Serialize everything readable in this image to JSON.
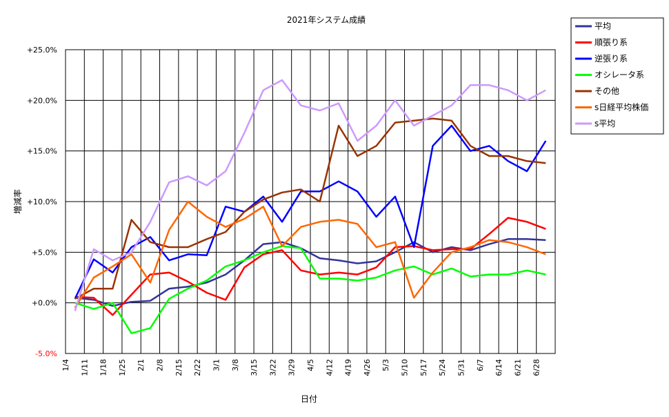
{
  "chart_data": {
    "type": "line",
    "title": "2021年システム成績",
    "xlabel": "日付",
    "ylabel": "増減率",
    "ylim": [
      -5,
      25
    ],
    "y_ticks": [
      "-5.0%",
      "+0.0%",
      "+5.0%",
      "+10.0%",
      "+15.0%",
      "+20.0%",
      "+25.0%"
    ],
    "categories": [
      "1/4",
      "1/11",
      "1/18",
      "1/25",
      "2/1",
      "2/8",
      "2/15",
      "2/22",
      "3/1",
      "3/8",
      "3/15",
      "3/22",
      "3/29",
      "4/5",
      "4/12",
      "4/19",
      "4/26",
      "5/3",
      "5/10",
      "5/17",
      "5/24",
      "5/31",
      "6/7",
      "6/14",
      "6/21",
      "6/28"
    ],
    "grid": true,
    "legend_position": "right",
    "series": [
      {
        "name": "平均",
        "color": "#333399",
        "values": [
          0.5,
          0.3,
          -0.3,
          0.1,
          0.2,
          1.4,
          1.6,
          2.0,
          2.8,
          4.2,
          5.8,
          6.0,
          5.4,
          4.4,
          4.2,
          3.9,
          4.1,
          5.0,
          6.0,
          5.0,
          5.5,
          5.2,
          5.8,
          6.3,
          6.3,
          6.2
        ]
      },
      {
        "name": "順張り系",
        "color": "#ff0000",
        "values": [
          0.6,
          0.5,
          -1.2,
          0.8,
          2.8,
          3.0,
          2.1,
          1.0,
          0.3,
          3.5,
          4.8,
          5.2,
          3.2,
          2.8,
          3.0,
          2.8,
          3.5,
          5.5,
          5.6,
          5.2,
          5.3,
          5.3,
          6.8,
          8.4,
          8.0,
          7.3
        ]
      },
      {
        "name": "逆張り系",
        "color": "#0000ff",
        "values": [
          0.4,
          4.3,
          3.0,
          5.5,
          6.5,
          4.2,
          4.8,
          4.7,
          9.5,
          9.0,
          10.5,
          8.0,
          11.0,
          11.0,
          12.0,
          11.0,
          8.5,
          10.5,
          5.5,
          15.5,
          17.5,
          15.0,
          15.5,
          14.0,
          13.0,
          16.0
        ]
      },
      {
        "name": "オシレータ系",
        "color": "#00ff00",
        "values": [
          0.0,
          -0.6,
          0.0,
          -3.0,
          -2.5,
          0.4,
          1.4,
          2.2,
          3.6,
          4.2,
          5.0,
          5.6,
          5.4,
          2.4,
          2.4,
          2.2,
          2.5,
          3.2,
          3.6,
          2.8,
          3.4,
          2.6,
          2.8,
          2.8,
          3.2,
          2.8
        ]
      },
      {
        "name": "その他",
        "color": "#993300",
        "values": [
          0.4,
          1.4,
          1.4,
          8.2,
          6.0,
          5.5,
          5.5,
          6.3,
          7.0,
          9.0,
          10.2,
          10.9,
          11.2,
          10.0,
          17.5,
          14.5,
          15.5,
          17.8,
          18.0,
          18.2,
          18.0,
          15.5,
          14.5,
          14.5,
          14.0,
          13.8
        ]
      },
      {
        "name": "s日経平均株価",
        "color": "#ff6600",
        "values": [
          -0.5,
          2.5,
          3.6,
          4.8,
          2.0,
          7.2,
          10.0,
          8.5,
          7.5,
          8.3,
          9.5,
          5.6,
          7.5,
          8.0,
          8.2,
          7.8,
          5.5,
          6.0,
          0.5,
          3.0,
          5.0,
          5.5,
          6.2,
          6.0,
          5.5,
          4.8
        ]
      },
      {
        "name": "s平均",
        "color": "#cc99ff",
        "values": [
          -0.8,
          5.3,
          4.2,
          5.0,
          8.0,
          11.9,
          12.5,
          11.6,
          13.0,
          16.8,
          21.0,
          22.0,
          19.5,
          19.0,
          19.7,
          16.0,
          17.5,
          20.0,
          17.5,
          18.5,
          19.5,
          21.5,
          21.5,
          21.0,
          20.0,
          21.0
        ]
      }
    ]
  }
}
